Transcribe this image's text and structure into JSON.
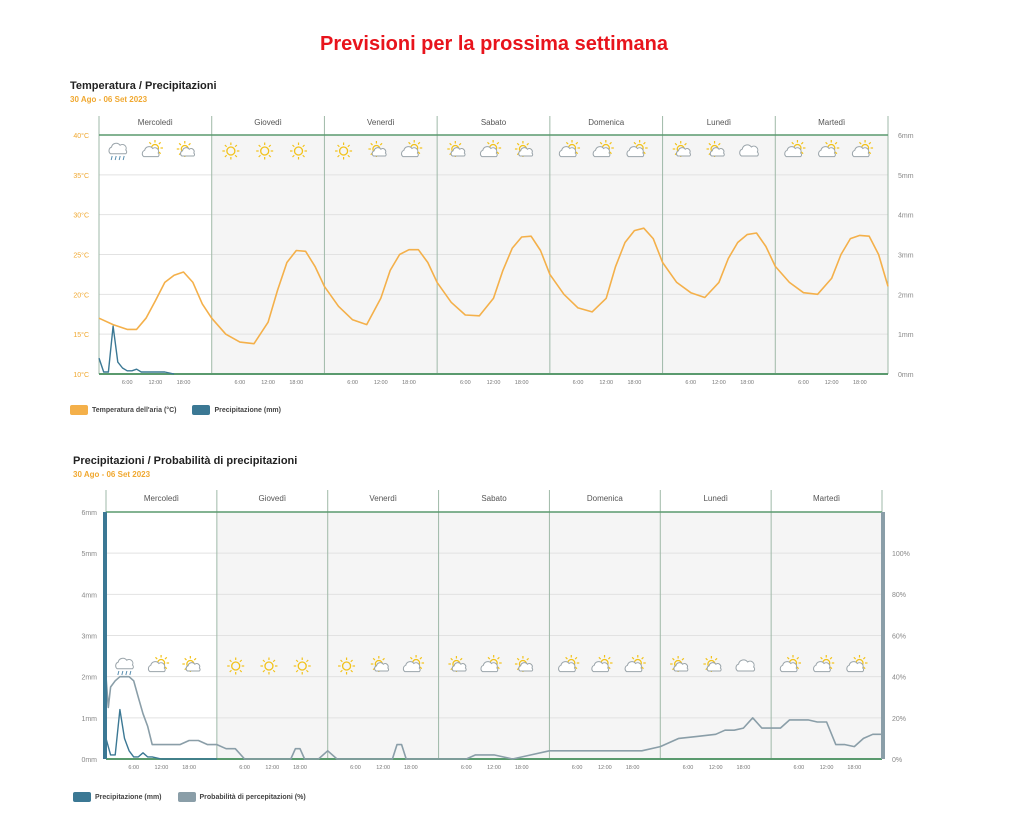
{
  "page_title": "Previsioni per la prossima settimana",
  "days": [
    "Mercoledì",
    "Giovedì",
    "Venerdì",
    "Sabato",
    "Domenica",
    "Lunedì",
    "Martedì"
  ],
  "hour_labels": [
    "6:00",
    "12:00",
    "18:00"
  ],
  "colors": {
    "temperature": "#f4b04a",
    "precipitation": "#3b7894",
    "probability": "#8a9ea8",
    "title": "#e8141c",
    "axis_left_top": "#f0a830",
    "grid_green": "#5a9a6e"
  },
  "weather_icons": [
    [
      "rain-cloud-icon",
      "partly-cloudy-icon",
      "sun-cloud-icon"
    ],
    [
      "sun-icon",
      "sun-icon",
      "sun-icon"
    ],
    [
      "sun-icon",
      "sun-cloud-icon",
      "partly-cloudy-icon"
    ],
    [
      "sun-cloud-icon",
      "partly-cloudy-icon",
      "sun-cloud-icon"
    ],
    [
      "partly-cloudy-icon",
      "partly-cloudy-icon",
      "partly-cloudy-icon"
    ],
    [
      "sun-cloud-icon",
      "sun-cloud-icon",
      "cloud-icon"
    ],
    [
      "partly-cloudy-icon",
      "partly-cloudy-icon",
      "partly-cloudy-icon"
    ]
  ],
  "chart_data": [
    {
      "type": "line",
      "title": "Temperatura / Precipitazioni",
      "subtitle": "30 Ago - 06 Set 2023",
      "x_unit": "hours from start",
      "x_range": [
        0,
        168
      ],
      "y_left_ticks": [
        "40°C",
        "35°C",
        "30°C",
        "25°C",
        "20°C",
        "15°C",
        "10°C"
      ],
      "y_left_range": [
        10,
        40
      ],
      "y_right_ticks": [
        "6mm",
        "5mm",
        "4mm",
        "3mm",
        "2mm",
        "1mm",
        "0mm"
      ],
      "y_right_range": [
        0,
        6
      ],
      "legend": [
        "Temperatura dell'aria (°C)",
        "Precipitazione (mm)"
      ],
      "series": [
        {
          "name": "Temperatura dell'aria (°C)",
          "axis": "left",
          "x": [
            0,
            3,
            6,
            8,
            10,
            12,
            14,
            16,
            18,
            20,
            22,
            24,
            27,
            30,
            33,
            36,
            38,
            40,
            42,
            44,
            46,
            48,
            51,
            54,
            57,
            60,
            62,
            64,
            66,
            68,
            70,
            72,
            75,
            78,
            81,
            84,
            86,
            88,
            90,
            92,
            94,
            96,
            99,
            102,
            105,
            108,
            110,
            112,
            114,
            116,
            118,
            120,
            123,
            126,
            129,
            132,
            134,
            136,
            138,
            140,
            142,
            144,
            147,
            150,
            153,
            156,
            158,
            160,
            162,
            164,
            166,
            168
          ],
          "values": [
            17,
            16.2,
            15.6,
            15.6,
            17,
            19.2,
            21.5,
            22.4,
            22.8,
            21.5,
            18.8,
            17,
            15,
            14,
            13.8,
            16.5,
            20.5,
            24,
            25.5,
            25.4,
            23.5,
            21,
            18.5,
            16.8,
            16.2,
            19.5,
            23,
            25,
            25.6,
            25.6,
            24,
            21.5,
            19,
            17.4,
            17.3,
            19.5,
            23,
            25.8,
            27.2,
            27.3,
            25.5,
            22.5,
            20,
            18.3,
            17.8,
            19.5,
            23.5,
            26.5,
            28,
            28.3,
            27,
            24,
            21.5,
            20.2,
            19.6,
            21.5,
            24.5,
            26.5,
            27.5,
            27.7,
            26,
            23.5,
            21.5,
            20.2,
            20,
            22,
            25,
            27,
            27.4,
            27.3,
            25,
            21
          ]
        },
        {
          "name": "Precipitazione (mm)",
          "axis": "right",
          "x": [
            0,
            1,
            2,
            3,
            4,
            5,
            6,
            7,
            8,
            9,
            10,
            11,
            12,
            13,
            14,
            16
          ],
          "values": [
            0.4,
            0.05,
            0.05,
            1.2,
            0.3,
            0.15,
            0.08,
            0.08,
            0.12,
            0.05,
            0.05,
            0.05,
            0.05,
            0.05,
            0.05,
            0
          ]
        }
      ]
    },
    {
      "type": "line",
      "title": "Precipitazioni / Probabilità di precipitazioni",
      "subtitle": "30 Ago - 06 Set 2023",
      "x_unit": "hours from start",
      "x_range": [
        0,
        168
      ],
      "y_left_ticks": [
        "6mm",
        "5mm",
        "4mm",
        "3mm",
        "2mm",
        "1mm",
        "0mm"
      ],
      "y_left_range": [
        0,
        6
      ],
      "y_right_ticks": [
        "100%",
        "80%",
        "60%",
        "40%",
        "20%",
        "0%"
      ],
      "y_right_range": [
        0,
        120
      ],
      "legend": [
        "Precipitazione (mm)",
        "Probabilità di percepitazioni (%)"
      ],
      "series": [
        {
          "name": "Precipitazione (mm)",
          "axis": "left",
          "x": [
            0,
            1,
            2,
            3,
            4,
            5,
            6,
            7,
            8,
            9,
            10,
            12,
            14,
            16,
            18,
            20,
            22,
            24
          ],
          "values": [
            0.5,
            0.1,
            0.1,
            1.2,
            0.5,
            0.2,
            0.05,
            0.05,
            0.15,
            0.05,
            0.05,
            0,
            0,
            0,
            0,
            0,
            0,
            0
          ]
        },
        {
          "name": "Probabilità di percepitazioni (%)",
          "axis": "right",
          "x": [
            0,
            0.5,
            1,
            2,
            3,
            4,
            5,
            6,
            7,
            8,
            9,
            10,
            11,
            12,
            13,
            14,
            16,
            18,
            20,
            22,
            24,
            26,
            28,
            30,
            36,
            40,
            41,
            42,
            43,
            44,
            46,
            48,
            50,
            52,
            54,
            56,
            58,
            60,
            62,
            63,
            64,
            65,
            66,
            68,
            70,
            72,
            74,
            76,
            78,
            80,
            82,
            84,
            88,
            92,
            96,
            100,
            104,
            108,
            112,
            116,
            120,
            124,
            128,
            132,
            134,
            136,
            138,
            140,
            142,
            144,
            146,
            148,
            150,
            152,
            154,
            156,
            158,
            160,
            162,
            164,
            166,
            168
          ],
          "values": [
            40,
            25,
            35,
            38,
            40,
            40,
            40,
            38,
            30,
            22,
            16,
            7,
            7,
            7,
            7,
            7,
            7,
            9,
            9,
            7,
            7,
            5,
            5,
            0,
            0,
            0,
            5,
            5,
            0,
            0,
            0,
            4,
            0,
            0,
            0,
            0,
            0,
            0,
            0,
            7,
            7,
            0,
            0,
            0,
            0,
            0,
            0,
            0,
            0,
            2,
            2,
            2,
            0,
            2,
            4,
            4,
            4,
            4,
            4,
            4,
            6,
            10,
            11,
            12,
            14,
            14,
            15,
            20,
            15,
            15,
            15,
            19,
            19,
            19,
            18,
            18,
            7,
            7,
            6,
            10,
            12,
            12
          ]
        }
      ]
    }
  ]
}
